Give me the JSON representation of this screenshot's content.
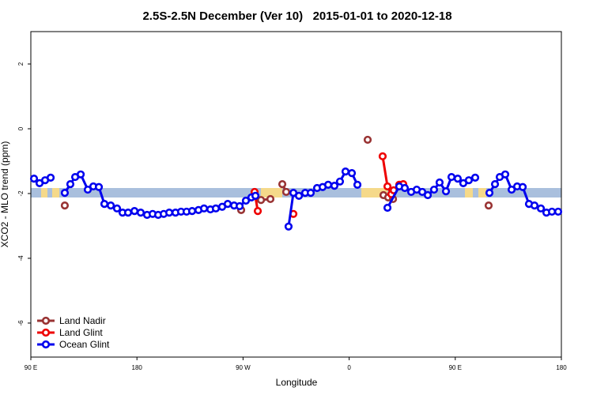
{
  "chart_data": {
    "type": "line",
    "title": "2.5S-2.5N December (Ver 10)   2015-01-01 to 2020-12-18",
    "x_label": "Longitude",
    "y_label": "XCO2 - MLO trend (ppm)",
    "xlim": [
      90,
      540
    ],
    "ylim": [
      -7.05,
      3
    ],
    "xticks": [
      {
        "value": 90,
        "label": "90 E"
      },
      {
        "value": 180,
        "label": "180"
      },
      {
        "value": 270,
        "label": "90 W"
      },
      {
        "value": 360,
        "label": "0"
      },
      {
        "value": 450,
        "label": "90 E"
      },
      {
        "value": 540,
        "label": "180"
      }
    ],
    "yticks": [
      -6,
      -4,
      -2,
      0,
      2
    ],
    "legend": "bottom-left",
    "series": [
      {
        "name": "Land Nadir",
        "color": "#993333",
        "x": [
          118.8,
          null,
          268.4,
          null,
          279.8,
          285.2,
          293.2,
          null,
          303.3,
          306.6,
          null,
          375.7,
          null,
          389.1,
          393.1,
          397.2,
          null,
          478.3
        ],
        "values": [
          -2.37,
          null,
          -2.51,
          null,
          -2.0,
          -2.2,
          -2.17,
          null,
          -1.71,
          -1.95,
          null,
          -0.34,
          null,
          -2.05,
          -2.12,
          -2.17,
          null,
          -2.37
        ]
      },
      {
        "name": "Land Glint",
        "color": "#ee0000",
        "x": [
          279.8,
          282.5,
          null,
          312.7,
          null,
          388.4,
          392.5,
          395.8,
          397.8,
          402.5,
          405.9
        ],
        "values": [
          -1.95,
          -2.54,
          null,
          -2.63,
          null,
          -0.85,
          -1.78,
          -2.02,
          -1.9,
          -1.73,
          -1.71
        ]
      },
      {
        "name": "Ocean Glint",
        "color": "#0000ee",
        "x": [
          92.7,
          97.4,
          102.1,
          106.8,
          null,
          118.8,
          123.5,
          127.6,
          132.3,
          138.3,
          143.0,
          147.7,
          152.4,
          157.8,
          163.1,
          167.8,
          172.5,
          177.9,
          183.2,
          188.6,
          193.3,
          198.0,
          202.7,
          207.4,
          212.7,
          217.4,
          222.1,
          226.8,
          232.2,
          236.9,
          242.3,
          246.9,
          252.3,
          257.0,
          262.4,
          267.1,
          272.4,
          277.1,
          280.5,
          null,
          308.6,
          312.7,
          317.4,
          322.7,
          327.4,
          332.8,
          337.5,
          342.2,
          347.5,
          352.2,
          356.9,
          362.3,
          367.0,
          null,
          392.5,
          402.5,
          407.2,
          412.6,
          417.3,
          422.0,
          426.7,
          432.0,
          436.7,
          442.1,
          446.8,
          452.1,
          456.8,
          461.5,
          466.9,
          null,
          479.0,
          483.7,
          487.7,
          492.4,
          497.8,
          502.5,
          507.2,
          512.5,
          517.2,
          522.6,
          527.3,
          532.0,
          537.3
        ],
        "values": [
          -1.54,
          -1.68,
          -1.59,
          -1.51,
          null,
          -1.98,
          -1.71,
          -1.49,
          -1.41,
          -1.88,
          -1.78,
          -1.8,
          -2.32,
          -2.37,
          -2.46,
          -2.59,
          -2.59,
          -2.54,
          -2.59,
          -2.66,
          -2.63,
          -2.66,
          -2.63,
          -2.59,
          -2.59,
          -2.56,
          -2.56,
          -2.54,
          -2.51,
          -2.46,
          -2.49,
          -2.46,
          -2.41,
          -2.32,
          -2.37,
          -2.39,
          -2.22,
          -2.12,
          -2.07,
          null,
          -3.02,
          -1.98,
          -2.07,
          -1.98,
          -1.98,
          -1.83,
          -1.8,
          -1.73,
          -1.76,
          -1.63,
          -1.32,
          -1.37,
          -1.73,
          null,
          -2.44,
          -1.78,
          -1.83,
          -1.95,
          -1.88,
          -1.95,
          -2.05,
          -1.88,
          -1.66,
          -1.93,
          -1.49,
          -1.54,
          -1.68,
          -1.59,
          -1.51,
          null,
          -1.98,
          -1.71,
          -1.49,
          -1.41,
          -1.88,
          -1.78,
          -1.8,
          -2.32,
          -2.37,
          -2.46,
          -2.59,
          -2.56,
          -2.56
        ]
      }
    ]
  }
}
